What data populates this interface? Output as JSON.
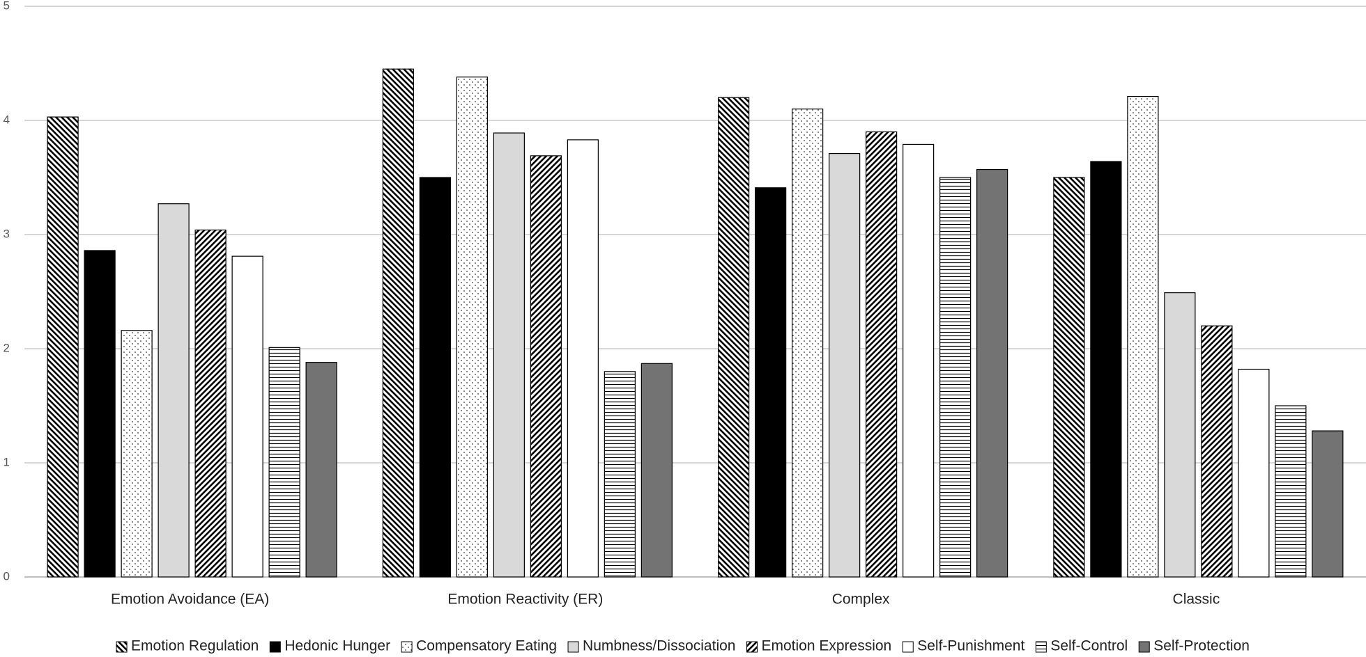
{
  "chart_data": {
    "type": "bar",
    "categories": [
      "Emotion Avoidance (EA)",
      "Emotion Reactivity (ER)",
      "Complex",
      "Classic"
    ],
    "series": [
      {
        "name": "Emotion Regulation",
        "color": "#000000",
        "pattern": "back-diagonal",
        "values": [
          4.03,
          4.45,
          4.2,
          3.5
        ]
      },
      {
        "name": "Hedonic Hunger",
        "color": "#000000",
        "pattern": "solid",
        "values": [
          2.86,
          3.5,
          3.41,
          3.64
        ]
      },
      {
        "name": "Compensatory Eating",
        "color": "#000000",
        "pattern": "dots",
        "values": [
          2.16,
          4.38,
          4.1,
          4.21
        ]
      },
      {
        "name": "Numbness/Dissociation",
        "color": "#d9d9d9",
        "pattern": "solid",
        "values": [
          3.27,
          3.89,
          3.71,
          2.49
        ]
      },
      {
        "name": "Emotion Expression",
        "color": "#000000",
        "pattern": "diagonal",
        "values": [
          3.04,
          3.69,
          3.9,
          2.2
        ]
      },
      {
        "name": "Self-Punishment",
        "color": "#ffffff",
        "pattern": "solid",
        "values": [
          2.81,
          3.83,
          3.79,
          1.82
        ]
      },
      {
        "name": "Self-Control",
        "color": "#000000",
        "pattern": "horizontal",
        "values": [
          2.01,
          1.8,
          3.5,
          1.5
        ]
      },
      {
        "name": "Self-Protection",
        "color": "#737373",
        "pattern": "solid",
        "values": [
          1.88,
          1.87,
          3.57,
          1.28
        ]
      }
    ],
    "ylim": [
      0,
      5
    ],
    "yticks": [
      0,
      1,
      2,
      3,
      4,
      5
    ],
    "grid": true,
    "legend": "bottom"
  }
}
